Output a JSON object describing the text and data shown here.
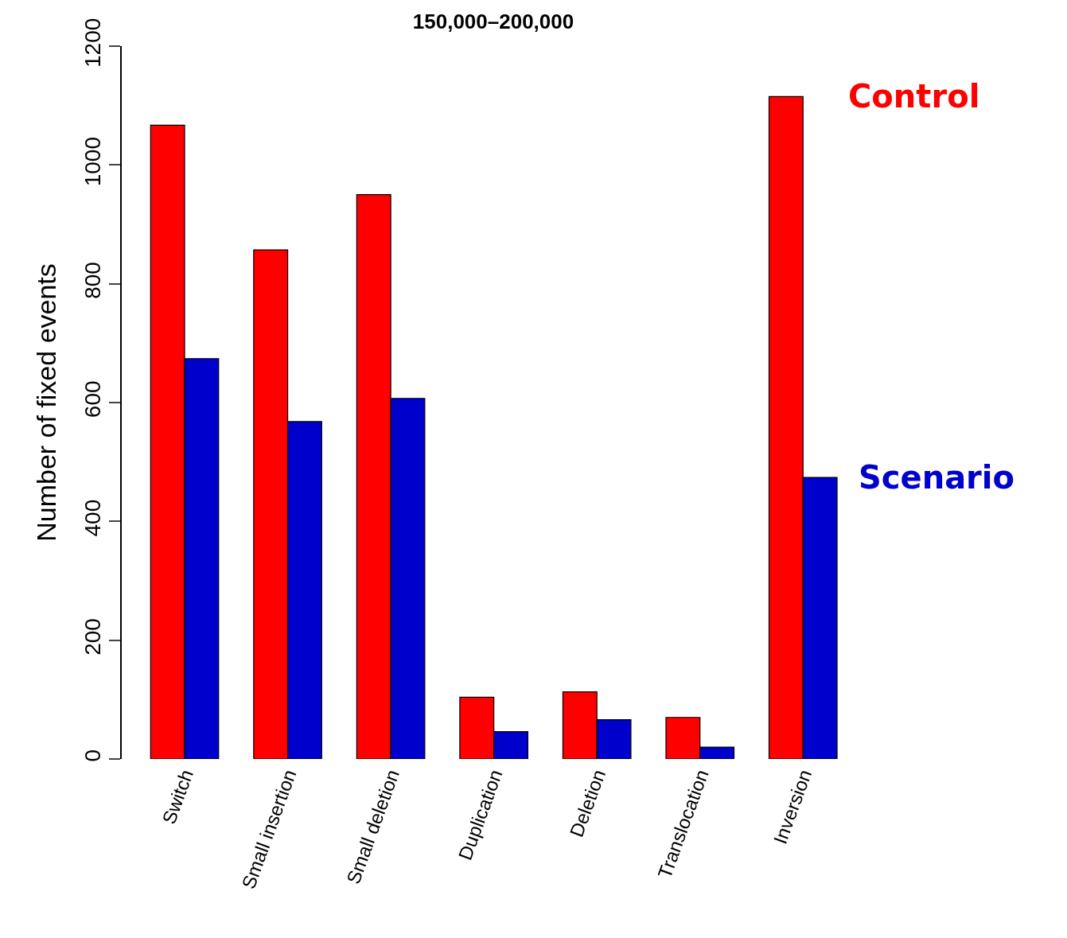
{
  "chart_data": {
    "type": "bar",
    "title": "150,000–200,000",
    "ylabel": "Number of fixed events",
    "categories": [
      "Switch",
      "Small insertion",
      "Small deletion",
      "Duplication",
      "Deletion",
      "Translocation",
      "Inversion"
    ],
    "series": [
      {
        "name": "Control",
        "color": "#ff0000",
        "values": [
          1067,
          857,
          950,
          104,
          113,
          70,
          1115
        ]
      },
      {
        "name": "Scenario",
        "color": "#0000cc",
        "values": [
          674,
          568,
          607,
          46,
          66,
          20,
          474
        ]
      }
    ],
    "ylim": [
      0,
      1200
    ],
    "yticks": [
      0,
      200,
      400,
      600,
      800,
      1000,
      1200
    ],
    "legend": false
  }
}
